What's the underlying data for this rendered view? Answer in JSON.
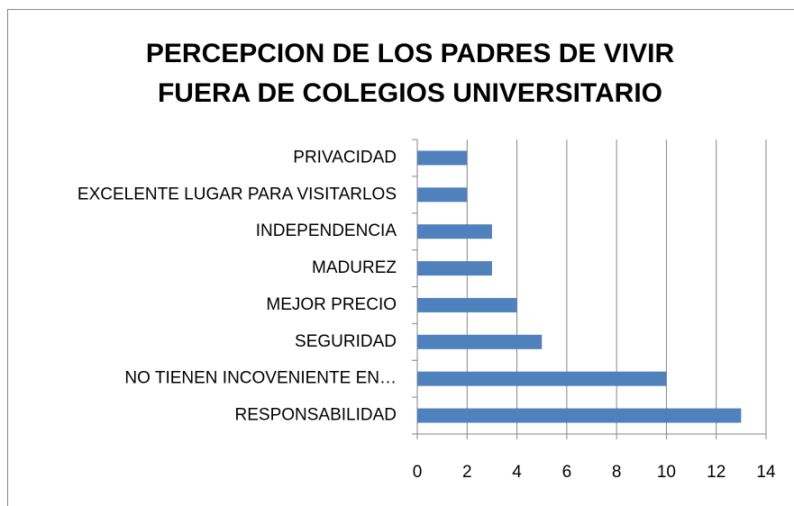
{
  "chart_data": {
    "type": "bar",
    "orientation": "horizontal",
    "title": "PERCEPCION DE LOS PADRES DE VIVIR FUERA DE COLEGIOS UNIVERSITARIO",
    "categories": [
      "PRIVACIDAD",
      "EXCELENTE LUGAR PARA VISITARLOS",
      "INDEPENDENCIA",
      "MADUREZ",
      "MEJOR PRECIO",
      "SEGURIDAD",
      "NO TIENEN INCOVENIENTE EN…",
      "RESPONSABILIDAD"
    ],
    "values": [
      2,
      2,
      3,
      3,
      4,
      5,
      10,
      13
    ],
    "color": "#4f81bd",
    "xlim": [
      0,
      14
    ],
    "xticks": [
      0,
      2,
      4,
      6,
      8,
      10,
      12,
      14
    ],
    "grid": true
  }
}
